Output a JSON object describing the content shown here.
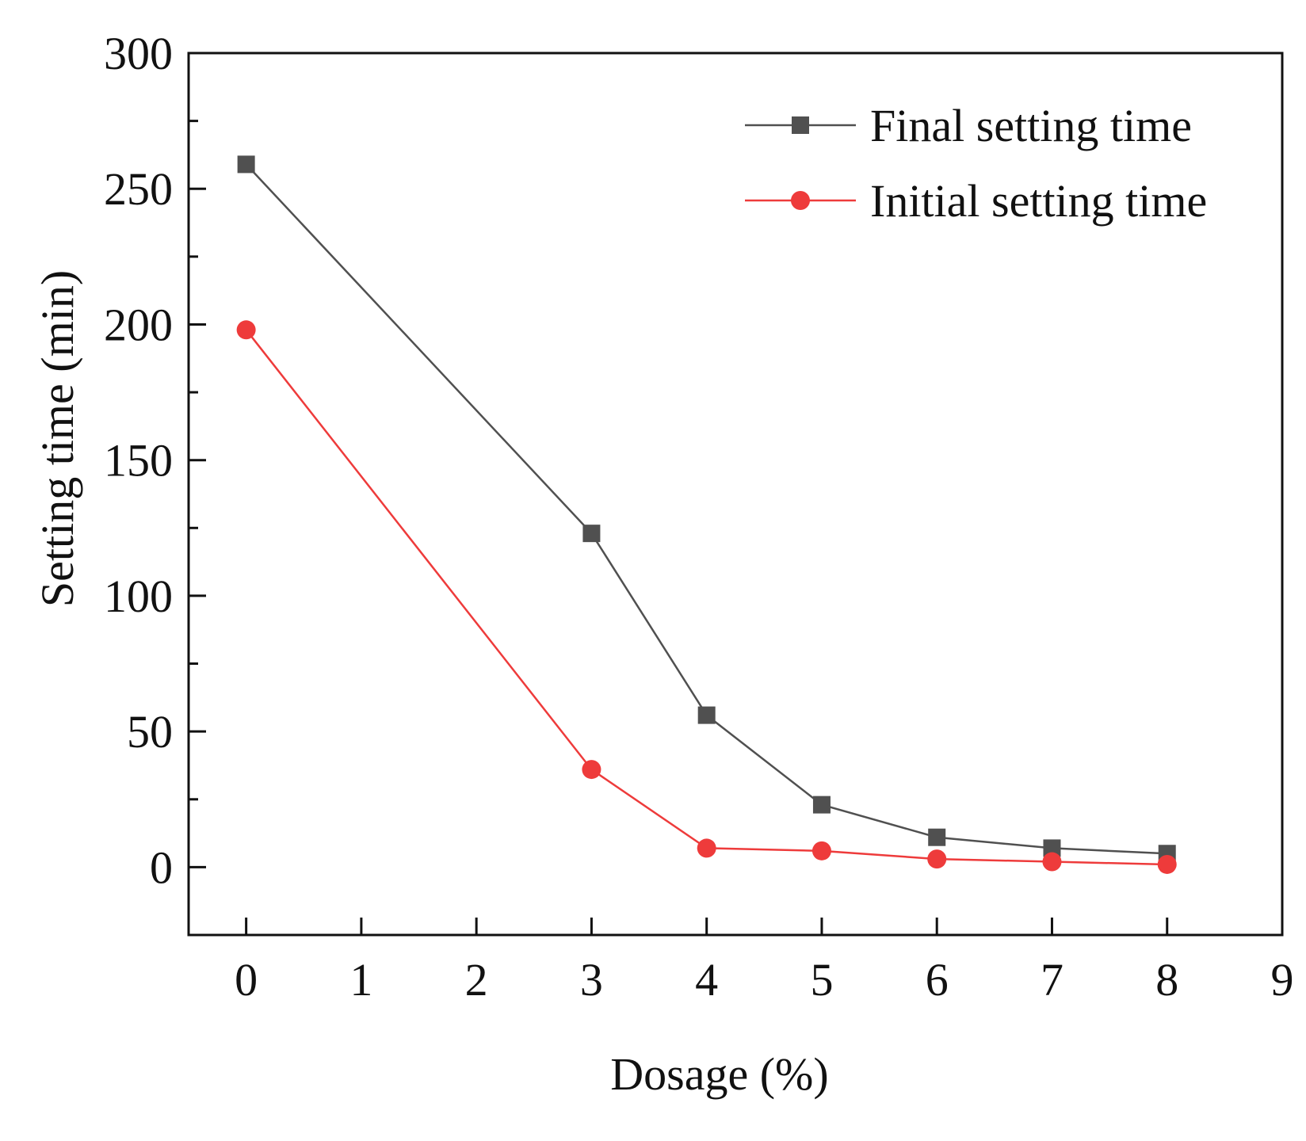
{
  "chart_data": {
    "type": "line",
    "title": "",
    "xlabel": "Dosage (%)",
    "ylabel": "Setting time (min)",
    "xlim": [
      -0.5,
      9
    ],
    "ylim": [
      -25,
      300
    ],
    "xticks": [
      0,
      1,
      2,
      3,
      4,
      5,
      6,
      7,
      8,
      9
    ],
    "yticks": [
      0,
      50,
      100,
      150,
      200,
      250,
      300
    ],
    "x_tick_labels": [
      "0",
      "1",
      "2",
      "3",
      "4",
      "5",
      "6",
      "7",
      "8",
      "9"
    ],
    "y_tick_labels": [
      "0",
      "50",
      "100",
      "150",
      "200",
      "250",
      "300"
    ],
    "grid": false,
    "legend_position": "top-right",
    "series": [
      {
        "name": "Final setting time",
        "color": "#505050",
        "marker": "square",
        "x": [
          0,
          3,
          4,
          5,
          6,
          7,
          8
        ],
        "y": [
          259,
          123,
          56,
          23,
          11,
          7,
          5
        ]
      },
      {
        "name": "Initial setting time",
        "color": "#ee3b3b",
        "marker": "circle",
        "x": [
          0,
          3,
          4,
          5,
          6,
          7,
          8
        ],
        "y": [
          198,
          36,
          7,
          6,
          3,
          2,
          1
        ]
      }
    ]
  }
}
